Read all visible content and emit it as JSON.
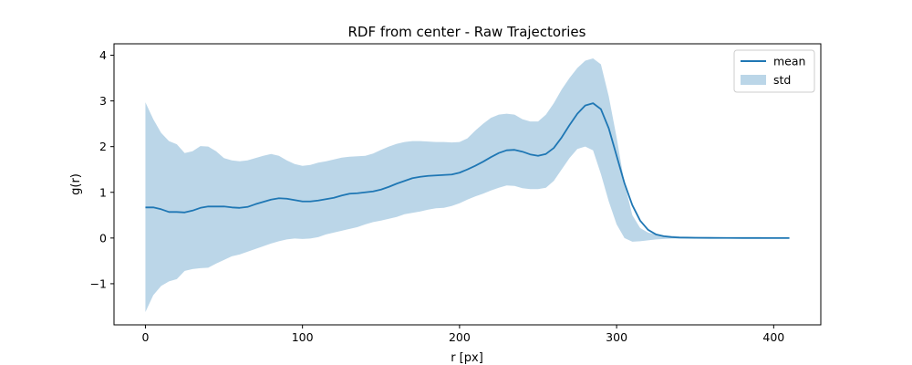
{
  "chart_data": {
    "type": "line",
    "title": "RDF from center - Raw Trajectories",
    "xlabel": "r [px]",
    "ylabel": "g(r)",
    "xlim": [
      -20,
      430
    ],
    "ylim": [
      -1.9,
      4.25
    ],
    "x_ticks": [
      0,
      100,
      200,
      300,
      400
    ],
    "y_ticks": [
      -1,
      0,
      1,
      2,
      3,
      4
    ],
    "y_tick_labels": [
      "−1",
      "0",
      "1",
      "2",
      "3",
      "4"
    ],
    "grid": false,
    "legend_position": "top-right",
    "colors": {
      "line": "#1f77b4",
      "band": "#1f77b4"
    },
    "series": [
      {
        "name": "mean",
        "kind": "line",
        "x": [
          0,
          5,
          10,
          15,
          20,
          25,
          30,
          35,
          40,
          45,
          50,
          55,
          60,
          65,
          70,
          75,
          80,
          85,
          90,
          95,
          100,
          105,
          110,
          115,
          120,
          125,
          130,
          135,
          140,
          145,
          150,
          155,
          160,
          165,
          170,
          175,
          180,
          185,
          190,
          195,
          200,
          205,
          210,
          215,
          220,
          225,
          230,
          235,
          240,
          245,
          250,
          255,
          260,
          265,
          270,
          275,
          280,
          285,
          290,
          295,
          300,
          305,
          310,
          315,
          320,
          325,
          330,
          335,
          340,
          350,
          360,
          370,
          380,
          390,
          400,
          410
        ],
        "y": [
          0.67,
          0.67,
          0.63,
          0.57,
          0.57,
          0.56,
          0.6,
          0.66,
          0.69,
          0.69,
          0.69,
          0.67,
          0.66,
          0.68,
          0.74,
          0.79,
          0.84,
          0.87,
          0.86,
          0.83,
          0.8,
          0.8,
          0.82,
          0.85,
          0.88,
          0.93,
          0.97,
          0.98,
          1.0,
          1.02,
          1.06,
          1.12,
          1.19,
          1.25,
          1.31,
          1.34,
          1.36,
          1.37,
          1.38,
          1.39,
          1.43,
          1.5,
          1.58,
          1.67,
          1.77,
          1.86,
          1.92,
          1.93,
          1.89,
          1.83,
          1.8,
          1.84,
          1.97,
          2.2,
          2.47,
          2.72,
          2.9,
          2.95,
          2.82,
          2.4,
          1.8,
          1.2,
          0.72,
          0.38,
          0.18,
          0.08,
          0.04,
          0.02,
          0.01,
          0.005,
          0.003,
          0.002,
          0.001,
          0.001,
          0.0,
          0.0
        ]
      },
      {
        "name": "std",
        "kind": "band",
        "x": [
          0,
          5,
          10,
          15,
          20,
          25,
          30,
          35,
          40,
          45,
          50,
          55,
          60,
          65,
          70,
          75,
          80,
          85,
          90,
          95,
          100,
          105,
          110,
          115,
          120,
          125,
          130,
          135,
          140,
          145,
          150,
          155,
          160,
          165,
          170,
          175,
          180,
          185,
          190,
          195,
          200,
          205,
          210,
          215,
          220,
          225,
          230,
          235,
          240,
          245,
          250,
          255,
          260,
          265,
          270,
          275,
          280,
          285,
          290,
          295,
          300,
          305,
          310,
          315,
          320,
          325,
          330,
          335,
          340,
          350,
          360,
          370,
          380,
          390,
          400,
          410
        ],
        "upper": [
          2.97,
          2.6,
          2.3,
          2.12,
          2.05,
          1.86,
          1.9,
          2.01,
          2.0,
          1.9,
          1.75,
          1.7,
          1.68,
          1.7,
          1.75,
          1.8,
          1.84,
          1.8,
          1.7,
          1.62,
          1.58,
          1.6,
          1.65,
          1.68,
          1.72,
          1.76,
          1.78,
          1.79,
          1.8,
          1.85,
          1.93,
          2.0,
          2.06,
          2.1,
          2.12,
          2.12,
          2.11,
          2.1,
          2.1,
          2.09,
          2.1,
          2.18,
          2.35,
          2.5,
          2.63,
          2.7,
          2.72,
          2.7,
          2.6,
          2.55,
          2.55,
          2.7,
          2.95,
          3.25,
          3.5,
          3.72,
          3.88,
          3.93,
          3.8,
          3.1,
          2.2,
          1.2,
          0.5,
          0.22,
          0.12,
          0.08,
          0.06,
          0.05,
          0.04,
          0.03,
          0.02,
          0.01,
          0.005,
          0.003,
          0.001,
          0.001
        ],
        "lower": [
          -1.62,
          -1.25,
          -1.05,
          -0.95,
          -0.9,
          -0.72,
          -0.68,
          -0.66,
          -0.65,
          -0.56,
          -0.48,
          -0.4,
          -0.36,
          -0.3,
          -0.24,
          -0.18,
          -0.12,
          -0.07,
          -0.03,
          -0.01,
          -0.02,
          -0.01,
          0.02,
          0.08,
          0.12,
          0.16,
          0.2,
          0.24,
          0.3,
          0.35,
          0.38,
          0.42,
          0.46,
          0.52,
          0.55,
          0.58,
          0.62,
          0.65,
          0.66,
          0.7,
          0.76,
          0.84,
          0.91,
          0.97,
          1.04,
          1.1,
          1.15,
          1.14,
          1.09,
          1.07,
          1.07,
          1.1,
          1.25,
          1.5,
          1.75,
          1.95,
          2.0,
          1.92,
          1.4,
          0.8,
          0.3,
          0.0,
          -0.08,
          -0.07,
          -0.05,
          -0.03,
          -0.02,
          -0.01,
          -0.01,
          -0.005,
          -0.003,
          -0.002,
          -0.001,
          -0.001,
          -0.001,
          -0.001
        ]
      }
    ]
  }
}
